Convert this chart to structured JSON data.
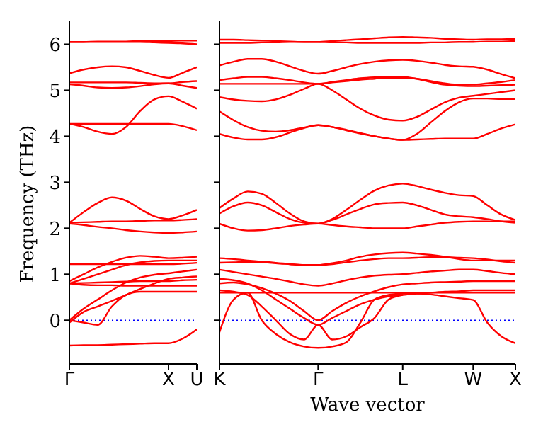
{
  "chart_data": [
    {
      "type": "line",
      "ylabel": "Frequency (THz)",
      "categories": [
        "Γ",
        null,
        null,
        null,
        null,
        null,
        null,
        "X",
        null,
        "U"
      ],
      "ylim": [
        -0.95,
        6.5
      ],
      "yticks": [
        0,
        1,
        2,
        3,
        4,
        5,
        6
      ],
      "ref_lines": [
        {
          "axis": "y",
          "value": 0,
          "color": "#0000ff",
          "line_style": "dotted"
        }
      ],
      "series": [
        {
          "color": "#ff0000",
          "values": [
            6.05,
            6.05,
            6.05,
            6.05,
            6.05,
            6.05,
            6.04,
            6.03,
            6.02,
            6.0
          ]
        },
        {
          "color": "#ff0000",
          "values": [
            6.05,
            6.05,
            6.06,
            6.06,
            6.06,
            6.07,
            6.07,
            6.07,
            6.08,
            6.08
          ]
        },
        {
          "color": "#ff0000",
          "values": [
            5.37,
            5.45,
            5.5,
            5.52,
            5.5,
            5.42,
            5.33,
            5.27,
            5.38,
            5.5
          ]
        },
        {
          "color": "#ff0000",
          "values": [
            5.17,
            5.17,
            5.17,
            5.17,
            5.17,
            5.16,
            5.15,
            5.15,
            5.18,
            5.2
          ]
        },
        {
          "color": "#ff0000",
          "values": [
            5.13,
            5.1,
            5.06,
            5.05,
            5.06,
            5.09,
            5.13,
            5.15,
            5.1,
            5.05
          ]
        },
        {
          "color": "#ff0000",
          "values": [
            4.27,
            4.2,
            4.1,
            4.05,
            4.2,
            4.55,
            4.8,
            4.87,
            4.75,
            4.6
          ]
        },
        {
          "color": "#ff0000",
          "values": [
            4.27,
            4.27,
            4.27,
            4.27,
            4.27,
            4.27,
            4.27,
            4.27,
            4.22,
            4.13
          ]
        },
        {
          "color": "#ff0000",
          "values": [
            2.12,
            2.35,
            2.55,
            2.67,
            2.6,
            2.42,
            2.26,
            2.2,
            2.28,
            2.4
          ]
        },
        {
          "color": "#ff0000",
          "values": [
            2.12,
            2.13,
            2.14,
            2.15,
            2.15,
            2.16,
            2.17,
            2.17,
            2.18,
            2.2
          ]
        },
        {
          "color": "#ff0000",
          "values": [
            2.1,
            2.07,
            2.03,
            2.0,
            1.96,
            1.93,
            1.91,
            1.9,
            1.91,
            1.93
          ]
        },
        {
          "color": "#ff0000",
          "values": [
            1.22,
            1.22,
            1.22,
            1.22,
            1.22,
            1.22,
            1.22,
            1.22,
            1.23,
            1.25
          ]
        },
        {
          "color": "#ff0000",
          "values": [
            0.85,
            1.0,
            1.15,
            1.27,
            1.36,
            1.4,
            1.38,
            1.35,
            1.36,
            1.38
          ]
        },
        {
          "color": "#ff0000",
          "values": [
            0.8,
            0.9,
            1.0,
            1.1,
            1.2,
            1.26,
            1.29,
            1.3,
            1.3,
            1.3
          ]
        },
        {
          "color": "#ff0000",
          "values": [
            0.8,
            0.81,
            0.82,
            0.83,
            0.84,
            0.85,
            0.85,
            0.85,
            0.87,
            0.88
          ]
        },
        {
          "color": "#ff0000",
          "values": [
            0.8,
            0.77,
            0.76,
            0.76,
            0.75,
            0.75,
            0.75,
            0.75,
            0.75,
            0.75
          ]
        },
        {
          "color": "#ff0000",
          "values": [
            0,
            0.25,
            0.45,
            0.65,
            0.82,
            0.93,
            0.99,
            1.02,
            1.06,
            1.1
          ]
        },
        {
          "color": "#ff0000",
          "values": [
            -0.05,
            0.18,
            0.3,
            0.42,
            0.55,
            0.68,
            0.8,
            0.9,
            0.93,
            0.95
          ]
        },
        {
          "color": "#ff0000",
          "values": [
            0,
            -0.05,
            -0.1,
            0.3,
            0.55,
            0.62,
            0.62,
            0.62,
            0.62,
            0.62
          ]
        },
        {
          "color": "#ff0000",
          "values": [
            -0.55,
            -0.54,
            -0.54,
            -0.53,
            -0.52,
            -0.51,
            -0.5,
            -0.5,
            -0.4,
            -0.2
          ]
        }
      ]
    },
    {
      "type": "line",
      "xlabel": "Wave vector",
      "tick_labels": "x",
      "categories": [
        "K",
        null,
        null,
        null,
        null,
        null,
        null,
        "Γ",
        null,
        null,
        null,
        null,
        null,
        "L",
        null,
        null,
        null,
        null,
        "W",
        null,
        null,
        "X"
      ],
      "ylim": [
        -0.95,
        6.5
      ],
      "yticks": [
        0,
        1,
        2,
        3,
        4,
        5,
        6
      ],
      "ref_lines": [
        {
          "axis": "y",
          "value": 0,
          "color": "#0000ff",
          "line_style": "dotted"
        }
      ],
      "series": [
        {
          "color": "#ff0000",
          "values": [
            6.1,
            6.1,
            6.09,
            6.08,
            6.07,
            6.06,
            6.05,
            6.05,
            6.07,
            6.09,
            6.11,
            6.13,
            6.15,
            6.16,
            6.15,
            6.14,
            6.12,
            6.11,
            6.1,
            6.11,
            6.11,
            6.12
          ]
        },
        {
          "color": "#ff0000",
          "values": [
            6.03,
            6.03,
            6.03,
            6.04,
            6.04,
            6.05,
            6.05,
            6.05,
            6.04,
            6.04,
            6.03,
            6.03,
            6.03,
            6.03,
            6.03,
            6.04,
            6.04,
            6.05,
            6.05,
            6.06,
            6.06,
            6.07
          ]
        },
        {
          "color": "#ff0000",
          "values": [
            5.54,
            5.62,
            5.68,
            5.68,
            5.62,
            5.52,
            5.42,
            5.36,
            5.42,
            5.5,
            5.57,
            5.62,
            5.65,
            5.66,
            5.64,
            5.6,
            5.55,
            5.52,
            5.51,
            5.45,
            5.35,
            5.26
          ]
        },
        {
          "color": "#ff0000",
          "values": [
            5.22,
            5.26,
            5.29,
            5.29,
            5.26,
            5.22,
            5.17,
            5.14,
            5.18,
            5.22,
            5.26,
            5.28,
            5.29,
            5.29,
            5.25,
            5.18,
            5.12,
            5.1,
            5.09,
            5.1,
            5.11,
            5.12
          ]
        },
        {
          "color": "#ff0000",
          "values": [
            5.14,
            5.14,
            5.14,
            5.14,
            5.14,
            5.14,
            5.14,
            5.14,
            5.17,
            5.2,
            5.23,
            5.25,
            5.27,
            5.27,
            5.25,
            5.2,
            5.15,
            5.12,
            5.12,
            5.15,
            5.18,
            5.22
          ]
        },
        {
          "color": "#ff0000",
          "values": [
            4.85,
            4.8,
            4.77,
            4.76,
            4.8,
            4.9,
            5.03,
            5.14,
            5.0,
            4.8,
            4.6,
            4.45,
            4.36,
            4.34,
            4.42,
            4.58,
            4.74,
            4.84,
            4.88,
            4.92,
            4.96,
            5.0
          ]
        },
        {
          "color": "#ff0000",
          "values": [
            4.54,
            4.35,
            4.2,
            4.12,
            4.1,
            4.13,
            4.19,
            4.24,
            4.2,
            4.14,
            4.07,
            4.0,
            3.95,
            3.92,
            4.05,
            4.3,
            4.55,
            4.74,
            4.82,
            4.82,
            4.81,
            4.81
          ]
        },
        {
          "color": "#ff0000",
          "values": [
            4.05,
            3.97,
            3.93,
            3.93,
            3.98,
            4.08,
            4.18,
            4.24,
            4.2,
            4.13,
            4.06,
            4.0,
            3.95,
            3.92,
            3.93,
            3.94,
            3.95,
            3.95,
            3.95,
            4.05,
            4.17,
            4.26
          ]
        },
        {
          "color": "#ff0000",
          "values": [
            2.44,
            2.65,
            2.8,
            2.75,
            2.55,
            2.32,
            2.15,
            2.1,
            2.2,
            2.4,
            2.62,
            2.82,
            2.93,
            2.97,
            2.92,
            2.84,
            2.77,
            2.72,
            2.7,
            2.5,
            2.3,
            2.18
          ]
        },
        {
          "color": "#ff0000",
          "values": [
            2.32,
            2.48,
            2.56,
            2.5,
            2.35,
            2.2,
            2.12,
            2.1,
            2.18,
            2.3,
            2.42,
            2.52,
            2.55,
            2.56,
            2.5,
            2.4,
            2.3,
            2.26,
            2.24,
            2.2,
            2.15,
            2.12
          ]
        },
        {
          "color": "#ff0000",
          "values": [
            2.1,
            2.0,
            1.95,
            1.96,
            2.0,
            2.05,
            2.08,
            2.1,
            2.07,
            2.04,
            2.02,
            2.0,
            2.0,
            2.0,
            2.04,
            2.08,
            2.12,
            2.14,
            2.15,
            2.15,
            2.15,
            2.15
          ]
        },
        {
          "color": "#ff0000",
          "values": [
            1.35,
            1.33,
            1.3,
            1.27,
            1.24,
            1.22,
            1.2,
            1.2,
            1.24,
            1.3,
            1.38,
            1.43,
            1.46,
            1.47,
            1.45,
            1.42,
            1.38,
            1.33,
            1.3,
            1.3,
            1.3,
            1.3
          ]
        },
        {
          "color": "#ff0000",
          "values": [
            1.25,
            1.26,
            1.27,
            1.27,
            1.25,
            1.22,
            1.2,
            1.2,
            1.22,
            1.26,
            1.3,
            1.33,
            1.35,
            1.35,
            1.36,
            1.37,
            1.37,
            1.36,
            1.35,
            1.32,
            1.28,
            1.25
          ]
        },
        {
          "color": "#ff0000",
          "values": [
            1.1,
            1.05,
            1.0,
            0.95,
            0.9,
            0.84,
            0.78,
            0.75,
            0.8,
            0.87,
            0.93,
            0.97,
            0.99,
            1.0,
            1.03,
            1.06,
            1.08,
            1.1,
            1.1,
            1.07,
            1.03,
            1.0
          ]
        },
        {
          "color": "#ff0000",
          "values": [
            0.6,
            0.6,
            0.6,
            0.6,
            0.6,
            0.6,
            0.6,
            0.6,
            0.6,
            0.6,
            0.6,
            0.6,
            0.6,
            0.6,
            0.6,
            0.6,
            0.6,
            0.6,
            0.6,
            0.6,
            0.6,
            0.6
          ]
        },
        {
          "color": "#ff0000",
          "values": [
            0.8,
            0.82,
            0.78,
            0.7,
            0.58,
            0.42,
            0.2,
            0,
            0.2,
            0.38,
            0.52,
            0.63,
            0.72,
            0.78,
            0.8,
            0.82,
            0.83,
            0.84,
            0.85,
            0.85,
            0.85,
            0.85
          ]
        },
        {
          "color": "#ff0000",
          "values": [
            0.9,
            0.87,
            0.8,
            0.65,
            0.45,
            0.25,
            0.05,
            -0.1,
            0.05,
            0.2,
            0.35,
            0.45,
            0.52,
            0.55,
            0.58,
            0.6,
            0.62,
            0.63,
            0.65,
            0.65,
            0.65,
            0.65
          ]
        },
        {
          "color": "#ff0000",
          "values": [
            -0.26,
            0.45,
            0.6,
            0.0,
            -0.3,
            -0.48,
            -0.57,
            -0.6,
            -0.57,
            -0.48,
            -0.05,
            0.45,
            0.55,
            0.58,
            0.58,
            0.56,
            0.52,
            0.48,
            0.44,
            -0.05,
            -0.35,
            -0.5
          ]
        },
        {
          "color": "#ff0000",
          "values": [
            0.65,
            0.62,
            0.55,
            0.3,
            0.0,
            -0.3,
            -0.42,
            -0.1,
            -0.42,
            -0.35,
            -0.15,
            0.05,
            0.45,
            0.55,
            null,
            null,
            null,
            null,
            null,
            null,
            null,
            null
          ]
        }
      ]
    }
  ]
}
